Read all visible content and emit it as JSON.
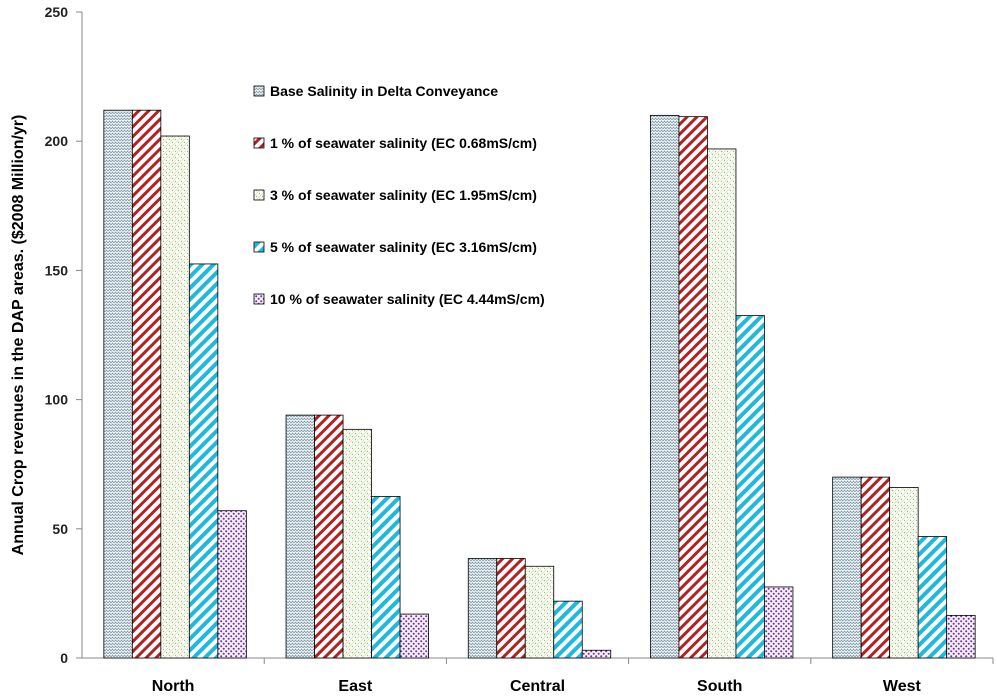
{
  "chart_data": {
    "type": "bar",
    "title": "",
    "xlabel": "",
    "ylabel": "Annual Crop revenues in the DAP areas. ($2008 Million/yr)",
    "ylim": [
      0,
      250
    ],
    "yticks": [
      0,
      50,
      100,
      150,
      200,
      250
    ],
    "grid": false,
    "legend_position": "inside-top-center",
    "categories": [
      "North",
      "East",
      "Central",
      "South",
      "West"
    ],
    "series": [
      {
        "name": "Base Salinity in Delta Conveyance",
        "pattern": "zigzag-grey",
        "color": "#9aaab0",
        "values": [
          212,
          94,
          38.5,
          210,
          70
        ]
      },
      {
        "name": "1 % of seawater salinity (EC 0.68mS/cm)",
        "pattern": "diagonal-red",
        "color": "#b22222",
        "values": [
          212,
          94,
          38.5,
          209.5,
          70
        ]
      },
      {
        "name": "3 % of seawater salinity (EC 1.95mS/cm)",
        "pattern": "dotted-green",
        "color": "#9bbb59",
        "values": [
          202,
          88.5,
          35.5,
          197,
          66
        ]
      },
      {
        "name": "5 % of seawater salinity (EC 3.16mS/cm)",
        "pattern": "diagonal-cyan",
        "color": "#00b0d8",
        "values": [
          152.5,
          62.5,
          22,
          132.5,
          47
        ]
      },
      {
        "name": "10 % of seawater salinity (EC 4.44mS/cm)",
        "pattern": "dots-purple",
        "color": "#7030a0",
        "values": [
          57,
          17,
          3,
          27.5,
          16.5
        ]
      }
    ]
  }
}
